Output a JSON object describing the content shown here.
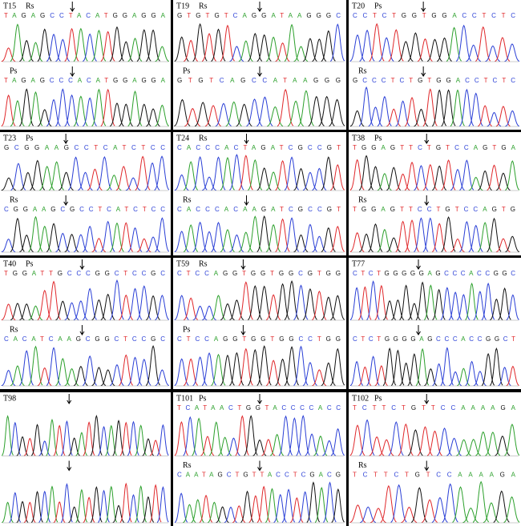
{
  "panels": [
    {
      "id": "T15",
      "traces": [
        {
          "label": "Rs",
          "sequence": "TAGAGCCTACATGGAGGA"
        },
        {
          "label": "Ps",
          "sequence": "TAGAGCCCACATGGAGGA"
        }
      ]
    },
    {
      "id": "T19",
      "traces": [
        {
          "label": "Rs",
          "sequence": "GTGTGTCAGGATAAGGGC"
        },
        {
          "label": "Ps",
          "sequence": "GTGTCAGCCATAAGGG"
        }
      ]
    },
    {
      "id": "T20",
      "traces": [
        {
          "label": "Ps",
          "sequence": "CCTCTGGTGGACCTCTC"
        },
        {
          "label": "Rs",
          "sequence": "GCCCTCTGTGGACCTCTC"
        }
      ]
    },
    {
      "id": "T23",
      "traces": [
        {
          "label": "Ps",
          "sequence": "GCGGAAGCCTCATCTCC"
        },
        {
          "label": "Rs",
          "sequence": "CGGAAGCGCCTCATCTCC"
        }
      ]
    },
    {
      "id": "T24",
      "traces": [
        {
          "label": "Rs",
          "sequence": "CACCCACTAGATCGCCGT"
        },
        {
          "label": "Rs",
          "sequence": "CACCCACAAGATCGCCGT"
        }
      ]
    },
    {
      "id": "T38",
      "traces": [
        {
          "label": "Ps",
          "sequence": "TGGAGTTCTGTCCAGTGA"
        },
        {
          "label": "Rs",
          "sequence": "TGGAGTTCCTGTCCAGTG"
        }
      ]
    },
    {
      "id": "T40",
      "traces": [
        {
          "label": "Ps",
          "sequence": "TGGATTGCCCGGCTCCGC"
        },
        {
          "label": "Rs",
          "sequence": "CACATCAAGCGGCTCCGC"
        }
      ]
    },
    {
      "id": "T59",
      "traces": [
        {
          "label": "Rs",
          "sequence": "CTCCAGGTGGTGGCGTGG"
        },
        {
          "label": "Ps",
          "sequence": "CTCCAGGTGGTGGCCTGG"
        }
      ]
    },
    {
      "id": "T77",
      "traces": [
        {
          "sequence": "CTCTGGGGGAGCCCACCGGC"
        },
        {
          "sequence": "CTCTGGGGAGCCCACCGGCT"
        }
      ]
    },
    {
      "id": "T98",
      "traces": [
        {},
        {}
      ]
    },
    {
      "id": "T101",
      "traces": [
        {
          "label": "Ps",
          "sequence": "TCATAACTGGTACCCCACC"
        },
        {
          "label": "Rs",
          "sequence": "CAATAGCTGTTACCTCGACG"
        }
      ]
    },
    {
      "id": "T102",
      "traces": [
        {
          "label": "Ps",
          "sequence": "TCTTCTGTTCCAAAAGA"
        },
        {
          "label": "Rs",
          "sequence": "TCTTCTGTCCAAAAGA"
        }
      ]
    }
  ]
}
